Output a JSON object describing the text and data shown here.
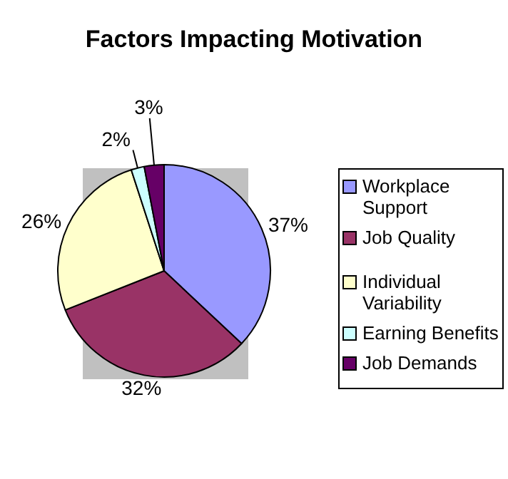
{
  "chart_data": {
    "type": "pie",
    "title": "Factors Impacting Motivation",
    "categories": [
      "Workplace Support",
      "Job Quality",
      "Individual Variability",
      "Earning Benefits",
      "Job Demands"
    ],
    "values": [
      37,
      32,
      26,
      2,
      3
    ],
    "colors": [
      "#9999ff",
      "#993366",
      "#ffffcc",
      "#ccffff",
      "#660066"
    ],
    "value_labels": [
      "37%",
      "32%",
      "26%",
      "2%",
      "3%"
    ],
    "legend": "right"
  }
}
